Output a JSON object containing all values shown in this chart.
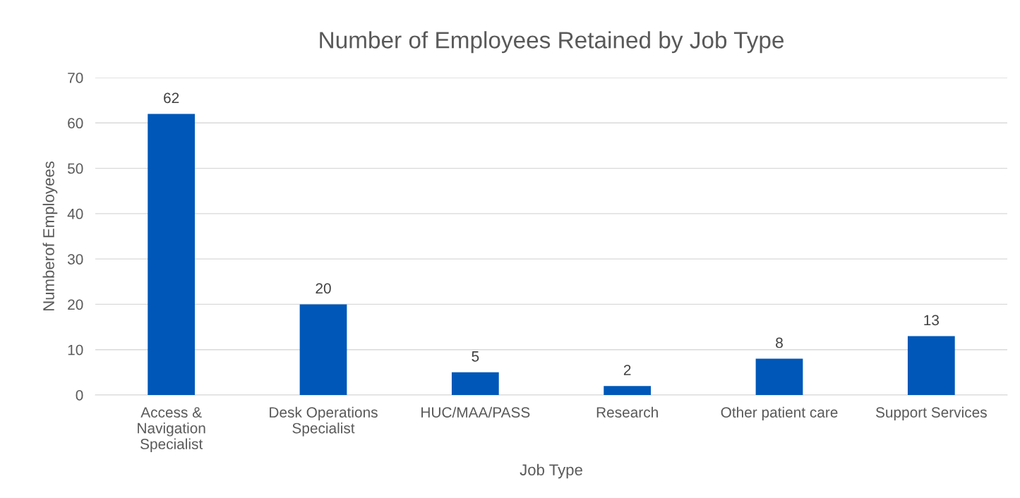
{
  "chart_data": {
    "type": "bar",
    "title": "Number of Employees Retained by Job Type",
    "xlabel": "Job Type",
    "ylabel": "Numberof Employees",
    "categories": [
      "Access &\nNavigation\nSpecialist",
      "Desk Operations\nSpecialist",
      "HUC/MAA/PASS",
      "Research",
      "Other patient care",
      "Support Services"
    ],
    "values": [
      62,
      20,
      5,
      2,
      8,
      13
    ],
    "color": "#0057b8",
    "ylim": [
      0,
      70
    ],
    "yticks": [
      0,
      10,
      20,
      30,
      40,
      50,
      60,
      70
    ],
    "grid": "y",
    "data_labels": true,
    "legend": false
  }
}
